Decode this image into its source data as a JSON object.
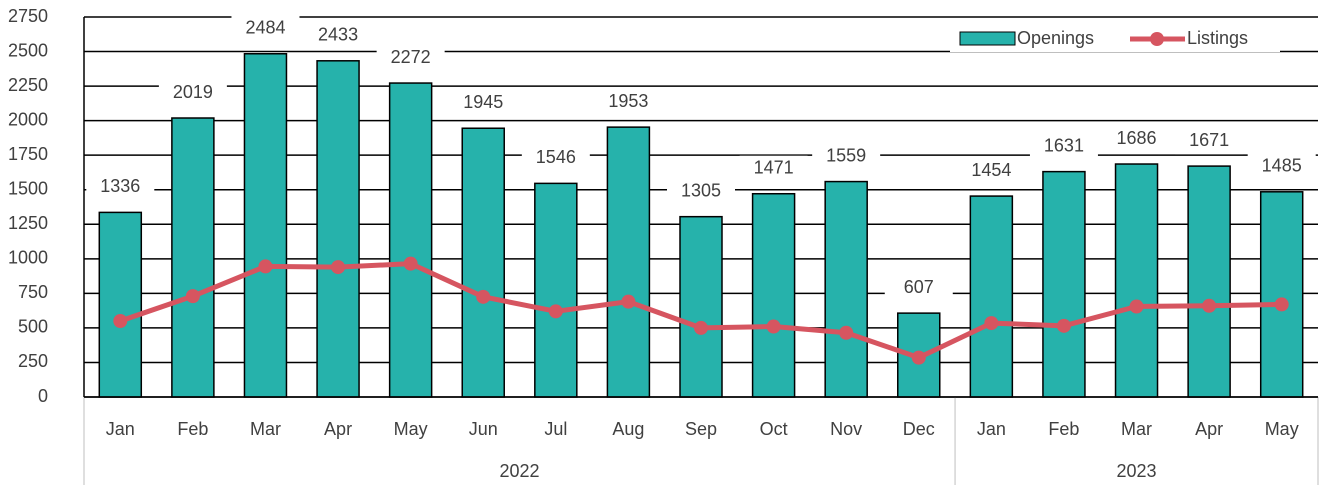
{
  "chart_data": {
    "type": "bar",
    "groups": [
      {
        "name": "2022",
        "categories": [
          "Jan",
          "Feb",
          "Mar",
          "Apr",
          "May",
          "Jun",
          "Jul",
          "Aug",
          "Sep",
          "Oct",
          "Nov",
          "Dec"
        ]
      },
      {
        "name": "2023",
        "categories": [
          "Jan",
          "Feb",
          "Mar",
          "Apr",
          "May"
        ]
      }
    ],
    "series": [
      {
        "name": "Openings",
        "type": "bar",
        "color": "#26b2ab",
        "values": [
          1336,
          2019,
          2484,
          2433,
          2272,
          1945,
          1546,
          1953,
          1305,
          1471,
          1559,
          607,
          1454,
          1631,
          1686,
          1671,
          1485
        ]
      },
      {
        "name": "Listings",
        "type": "line",
        "color": "#d65560",
        "values": [
          550,
          730,
          945,
          940,
          965,
          725,
          620,
          690,
          500,
          510,
          465,
          285,
          535,
          515,
          655,
          660,
          670
        ]
      }
    ],
    "ylim": [
      0,
      2750
    ],
    "yticks": [
      0,
      250,
      500,
      750,
      1000,
      1250,
      1500,
      1750,
      2000,
      2250,
      2500,
      2750
    ],
    "grid": true,
    "legend": "top-right",
    "data_labels": "Openings"
  }
}
